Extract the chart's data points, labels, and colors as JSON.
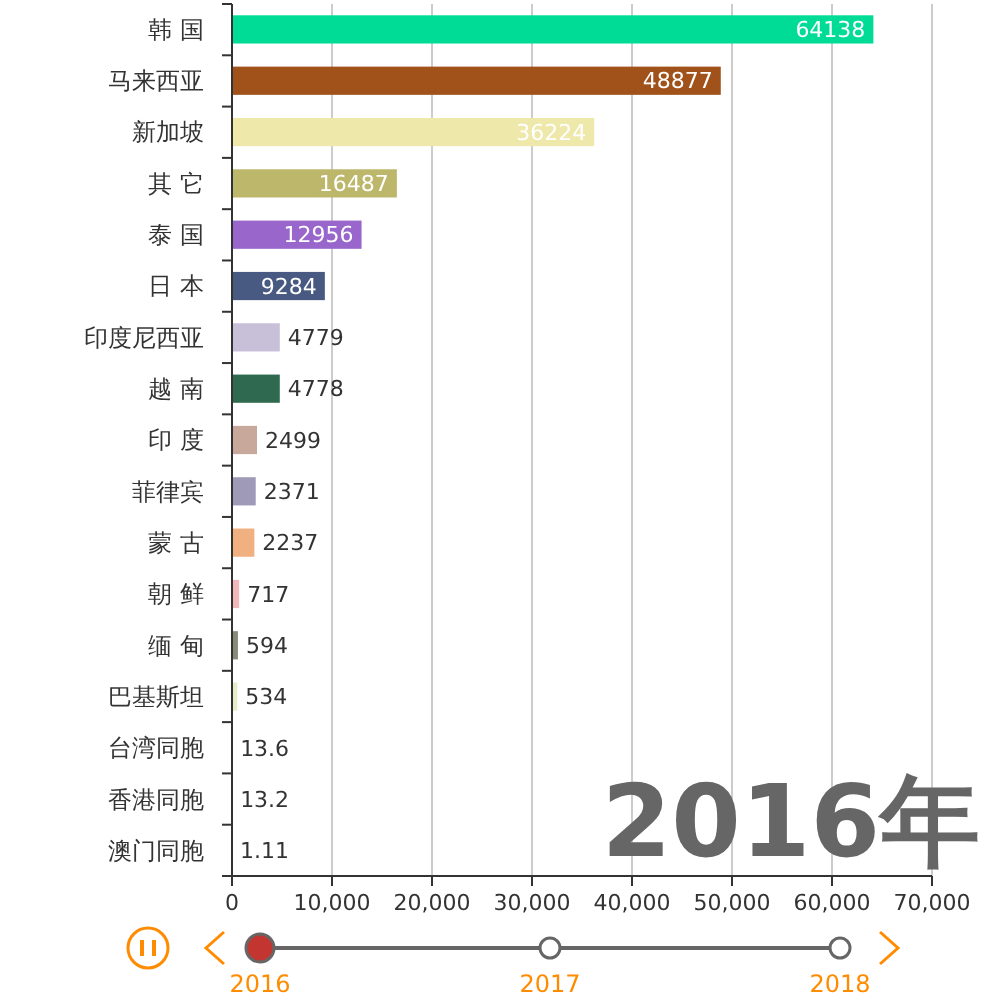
{
  "chart_data": {
    "type": "bar",
    "orientation": "horizontal",
    "categories": [
      "韩 国",
      "马来西亚",
      "新加坡",
      "其 它",
      "泰 国",
      "日 本",
      "印度尼西亚",
      "越 南",
      "印 度",
      "菲律宾",
      "蒙 古",
      "朝 鲜",
      "缅 甸",
      "巴基斯坦",
      "台湾同胞",
      "香港同胞",
      "澳门同胞"
    ],
    "values": [
      64138,
      48877,
      36224,
      16487,
      12956,
      9284,
      4779,
      4778,
      2499,
      2371,
      2237,
      717,
      594,
      534,
      13.6,
      13.2,
      1.11
    ],
    "colors": [
      "#00dc96",
      "#a0521a",
      "#eee8aa",
      "#bdb76b",
      "#9966cc",
      "#485a82",
      "#c8c0d8",
      "#2f6a50",
      "#c8a89a",
      "#9e9ab8",
      "#f0b080",
      "#f0b8b8",
      "#8a8a78",
      "#e8ecc8",
      "#a8d0d8",
      "#f09880",
      "#c0e0b8"
    ],
    "xlim": [
      0,
      70000
    ],
    "xticks": [
      {
        "value": 0,
        "label": "0"
      },
      {
        "value": 10000,
        "label": "10,000"
      },
      {
        "value": 20000,
        "label": "20,000"
      },
      {
        "value": 30000,
        "label": "30,000"
      },
      {
        "value": 40000,
        "label": "40,000"
      },
      {
        "value": 50000,
        "label": "50,000"
      },
      {
        "value": 60000,
        "label": "60,000"
      },
      {
        "value": 70000,
        "label": "70,000"
      }
    ],
    "grid": "x",
    "data_labels": true,
    "annotations": [
      "2016年",
      "2016",
      "2017",
      "2018"
    ]
  }
}
